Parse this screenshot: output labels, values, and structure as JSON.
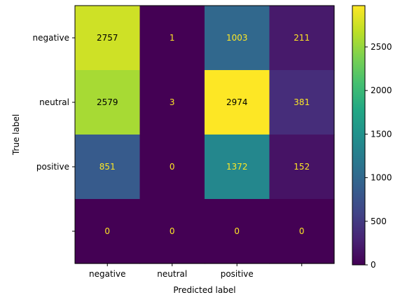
{
  "chart_data": {
    "type": "heatmap",
    "title": "",
    "xlabel": "Predicted label",
    "ylabel": "True label",
    "x_categories": [
      "negative",
      "neutral",
      "positive",
      ""
    ],
    "y_categories": [
      "negative",
      "neutral",
      "positive",
      ""
    ],
    "values": [
      [
        2757,
        1,
        1003,
        211
      ],
      [
        2579,
        3,
        2974,
        381
      ],
      [
        851,
        0,
        1372,
        152
      ],
      [
        0,
        0,
        0,
        0
      ]
    ],
    "colormap": "viridis",
    "color_range": [
      0,
      2974
    ],
    "colorbar_ticks": [
      0,
      500,
      1000,
      1500,
      2000,
      2500
    ],
    "grid": false,
    "legend": "colorbar-right"
  }
}
